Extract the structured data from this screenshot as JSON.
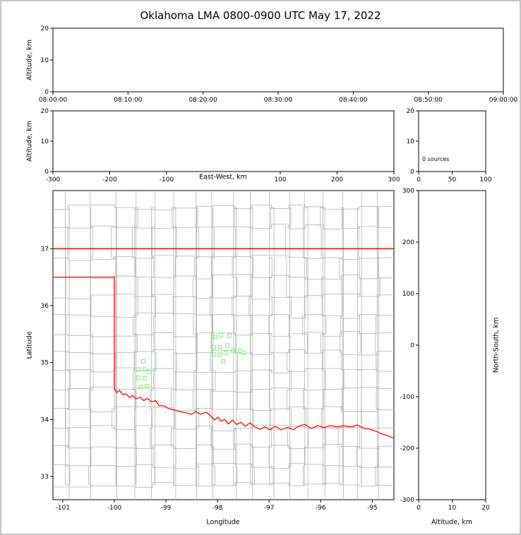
{
  "figure": {
    "title": "Oklahoma LMA 0800-0900 UTC May 17, 2022"
  },
  "colors": {
    "frame": "#000000",
    "county_line": "#b5b5b5",
    "state_border": "#ff0000",
    "station_marker": "#90ee90",
    "background": "#ffffff",
    "outer_border": "#c6c6c6"
  },
  "chart_data": [
    {
      "id": "altitude-time",
      "type": "scatter",
      "title": "",
      "xlabel": "",
      "ylabel": "Altitude, km",
      "xticks": [
        "08:00:00",
        "08:10:00",
        "08:20:00",
        "08:30:00",
        "08:40:00",
        "08:50:00",
        "09:00:00"
      ],
      "yticks": [
        0,
        10,
        20
      ],
      "ylim": [
        0,
        20
      ],
      "points": []
    },
    {
      "id": "altitude-eastwest",
      "type": "scatter",
      "xlabel": "East-West, km",
      "ylabel": "Altitude, km",
      "xticks": [
        -300,
        -200,
        -100,
        100,
        200,
        300
      ],
      "xlim": [
        -300,
        300
      ],
      "yticks": [
        0,
        10,
        20
      ],
      "ylim": [
        0,
        20
      ],
      "points": []
    },
    {
      "id": "altitude-histogram",
      "type": "histogram",
      "annotation": "0 sources",
      "xticks": [
        0,
        50,
        100
      ],
      "xlim": [
        0,
        100
      ],
      "yticks": [
        0,
        10,
        20
      ],
      "ylim": [
        0,
        20
      ],
      "points": []
    },
    {
      "id": "map",
      "type": "scatter",
      "xlabel": "Longitude",
      "ylabel": "Latitude",
      "xticks": [
        -101,
        -100,
        -99,
        -98,
        -97,
        -96,
        -95
      ],
      "xlim": [
        -101.19,
        -94.58
      ],
      "yticks": [
        33,
        34,
        35,
        36,
        37
      ],
      "ylim": [
        32.59,
        38.02
      ],
      "stations": [
        [
          -98.04,
          35.45
        ],
        [
          -97.93,
          35.48
        ],
        [
          -97.77,
          35.47
        ],
        [
          -98.07,
          35.27
        ],
        [
          -97.95,
          35.27
        ],
        [
          -97.81,
          35.3
        ],
        [
          -98.07,
          35.14
        ],
        [
          -97.95,
          35.14
        ],
        [
          -97.84,
          35.17
        ],
        [
          -97.7,
          35.21
        ],
        [
          -97.56,
          35.21
        ],
        [
          -97.89,
          35.02
        ],
        [
          -97.49,
          35.17
        ],
        [
          -99.44,
          35.02
        ],
        [
          -99.53,
          34.88
        ],
        [
          -99.41,
          34.88
        ],
        [
          -99.32,
          34.84
        ],
        [
          -99.53,
          34.73
        ],
        [
          -99.41,
          34.72
        ],
        [
          -99.49,
          34.57
        ],
        [
          -99.37,
          34.58
        ]
      ],
      "state_border": [
        [
          [
            -101.19,
            37.0
          ],
          [
            -94.58,
            37.0
          ]
        ],
        [
          [
            -101.19,
            36.5
          ],
          [
            -100.0,
            36.5
          ],
          [
            -100.0,
            34.56
          ]
        ],
        [
          [
            -100.0,
            34.56
          ],
          [
            -99.96,
            34.47
          ],
          [
            -99.9,
            34.51
          ],
          [
            -99.84,
            34.44
          ],
          [
            -99.77,
            34.45
          ],
          [
            -99.71,
            34.39
          ],
          [
            -99.64,
            34.42
          ],
          [
            -99.58,
            34.36
          ],
          [
            -99.5,
            34.39
          ],
          [
            -99.43,
            34.33
          ],
          [
            -99.36,
            34.37
          ],
          [
            -99.28,
            34.31
          ],
          [
            -99.2,
            34.33
          ],
          [
            -99.13,
            34.24
          ],
          [
            -99.04,
            34.24
          ],
          [
            -98.95,
            34.19
          ],
          [
            -98.85,
            34.17
          ],
          [
            -98.74,
            34.14
          ],
          [
            -98.62,
            34.12
          ],
          [
            -98.5,
            34.09
          ],
          [
            -98.42,
            34.14
          ],
          [
            -98.33,
            34.09
          ],
          [
            -98.22,
            34.13
          ],
          [
            -98.13,
            34.06
          ],
          [
            -98.06,
            33.99
          ],
          [
            -97.99,
            34.04
          ],
          [
            -97.93,
            33.97
          ],
          [
            -97.86,
            34.0
          ],
          [
            -97.79,
            33.92
          ],
          [
            -97.71,
            33.99
          ],
          [
            -97.63,
            33.91
          ],
          [
            -97.55,
            33.95
          ],
          [
            -97.46,
            33.88
          ],
          [
            -97.37,
            33.94
          ],
          [
            -97.28,
            33.87
          ],
          [
            -97.18,
            33.83
          ],
          [
            -97.08,
            33.87
          ],
          [
            -96.98,
            33.82
          ],
          [
            -96.88,
            33.88
          ],
          [
            -96.77,
            33.82
          ],
          [
            -96.65,
            33.86
          ],
          [
            -96.53,
            33.82
          ],
          [
            -96.41,
            33.89
          ],
          [
            -96.3,
            33.91
          ],
          [
            -96.18,
            33.84
          ],
          [
            -96.06,
            33.89
          ],
          [
            -95.94,
            33.86
          ],
          [
            -95.81,
            33.89
          ],
          [
            -95.68,
            33.87
          ],
          [
            -95.55,
            33.89
          ],
          [
            -95.42,
            33.87
          ],
          [
            -95.29,
            33.9
          ],
          [
            -95.17,
            33.85
          ],
          [
            -95.05,
            33.83
          ],
          [
            -94.92,
            33.79
          ],
          [
            -94.8,
            33.74
          ],
          [
            -94.68,
            33.71
          ],
          [
            -94.58,
            33.67
          ]
        ]
      ],
      "county_grid": {
        "verticals": [
          -100.9,
          -100.45,
          -100.0,
          -99.6,
          -99.25,
          -98.85,
          -98.42,
          -98.1,
          -97.66,
          -97.34,
          -96.95,
          -96.62,
          -96.3,
          -95.95,
          -95.6,
          -95.25,
          -94.9
        ],
        "horizontals": [
          32.85,
          33.18,
          33.52,
          33.85,
          34.18,
          34.52,
          34.86,
          35.18,
          35.5,
          35.82,
          36.16,
          36.5,
          36.84,
          37.38,
          37.72
        ]
      }
    },
    {
      "id": "northsouth-altitude",
      "type": "scatter",
      "xlabel": "Altitude, km",
      "ylabel": "North-South, km",
      "xticks": [
        0,
        10,
        20
      ],
      "xlim": [
        0,
        20
      ],
      "yticks": [
        300,
        200,
        100,
        0,
        -100,
        -200,
        -300
      ],
      "ylim": [
        -300,
        300
      ],
      "points": []
    }
  ]
}
